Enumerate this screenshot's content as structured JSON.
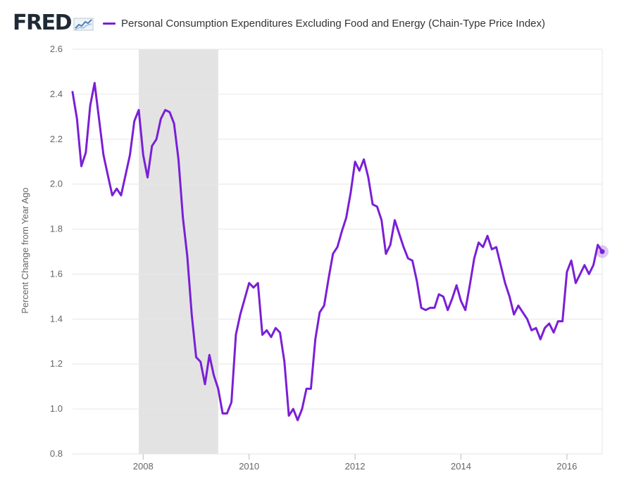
{
  "header": {
    "logo_text": "FRED",
    "legend_label": "Personal Consumption Expenditures Excluding Food and Energy (Chain-Type Price Index)"
  },
  "colors": {
    "series": "#7a1fd6",
    "recession": "#e3e3e3",
    "grid": "#e6e6e6",
    "text": "#666666",
    "logo": "#1f2a36"
  },
  "chart_data": {
    "type": "line",
    "title": "",
    "xlabel": "",
    "ylabel": "Percent Change from Year Ago",
    "ylim": [
      0.8,
      2.6
    ],
    "xlim": [
      "2006-09",
      "2016-08"
    ],
    "y_ticks": [
      "0.8",
      "1.0",
      "1.2",
      "1.4",
      "1.6",
      "1.8",
      "2.0",
      "2.2",
      "2.4",
      "2.6"
    ],
    "x_ticks": [
      "2008",
      "2010",
      "2012",
      "2014",
      "2016"
    ],
    "grid": true,
    "legend_position": "top",
    "recession_shading": [
      {
        "start": "2007-12",
        "end": "2009-06"
      }
    ],
    "series": [
      {
        "name": "Personal Consumption Expenditures Excluding Food and Energy (Chain-Type Price Index)",
        "points": [
          [
            "2006-09",
            2.41
          ],
          [
            "2006-10",
            2.29
          ],
          [
            "2006-11",
            2.08
          ],
          [
            "2006-12",
            2.14
          ],
          [
            "2007-01",
            2.35
          ],
          [
            "2007-02",
            2.45
          ],
          [
            "2007-03",
            2.29
          ],
          [
            "2007-04",
            2.13
          ],
          [
            "2007-05",
            2.04
          ],
          [
            "2007-06",
            1.95
          ],
          [
            "2007-07",
            1.98
          ],
          [
            "2007-08",
            1.95
          ],
          [
            "2007-09",
            2.04
          ],
          [
            "2007-10",
            2.13
          ],
          [
            "2007-11",
            2.28
          ],
          [
            "2007-12",
            2.33
          ],
          [
            "2008-01",
            2.13
          ],
          [
            "2008-02",
            2.03
          ],
          [
            "2008-03",
            2.17
          ],
          [
            "2008-04",
            2.2
          ],
          [
            "2008-05",
            2.29
          ],
          [
            "2008-06",
            2.33
          ],
          [
            "2008-07",
            2.32
          ],
          [
            "2008-08",
            2.27
          ],
          [
            "2008-09",
            2.11
          ],
          [
            "2008-10",
            1.85
          ],
          [
            "2008-11",
            1.68
          ],
          [
            "2008-12",
            1.42
          ],
          [
            "2009-01",
            1.23
          ],
          [
            "2009-02",
            1.21
          ],
          [
            "2009-03",
            1.11
          ],
          [
            "2009-04",
            1.24
          ],
          [
            "2009-05",
            1.15
          ],
          [
            "2009-06",
            1.09
          ],
          [
            "2009-07",
            0.98
          ],
          [
            "2009-08",
            0.98
          ],
          [
            "2009-09",
            1.03
          ],
          [
            "2009-10",
            1.33
          ],
          [
            "2009-11",
            1.42
          ],
          [
            "2009-12",
            1.49
          ],
          [
            "2010-01",
            1.56
          ],
          [
            "2010-02",
            1.54
          ],
          [
            "2010-03",
            1.56
          ],
          [
            "2010-04",
            1.33
          ],
          [
            "2010-05",
            1.35
          ],
          [
            "2010-06",
            1.32
          ],
          [
            "2010-07",
            1.36
          ],
          [
            "2010-08",
            1.34
          ],
          [
            "2010-09",
            1.21
          ],
          [
            "2010-10",
            0.97
          ],
          [
            "2010-11",
            1.0
          ],
          [
            "2010-12",
            0.95
          ],
          [
            "2011-01",
            1.0
          ],
          [
            "2011-02",
            1.09
          ],
          [
            "2011-03",
            1.09
          ],
          [
            "2011-04",
            1.31
          ],
          [
            "2011-05",
            1.43
          ],
          [
            "2011-06",
            1.46
          ],
          [
            "2011-07",
            1.58
          ],
          [
            "2011-08",
            1.69
          ],
          [
            "2011-09",
            1.72
          ],
          [
            "2011-10",
            1.79
          ],
          [
            "2011-11",
            1.85
          ],
          [
            "2011-12",
            1.96
          ],
          [
            "2012-01",
            2.1
          ],
          [
            "2012-02",
            2.06
          ],
          [
            "2012-03",
            2.11
          ],
          [
            "2012-04",
            2.03
          ],
          [
            "2012-05",
            1.91
          ],
          [
            "2012-06",
            1.9
          ],
          [
            "2012-07",
            1.84
          ],
          [
            "2012-08",
            1.69
          ],
          [
            "2012-09",
            1.73
          ],
          [
            "2012-10",
            1.84
          ],
          [
            "2012-11",
            1.78
          ],
          [
            "2012-12",
            1.72
          ],
          [
            "2013-01",
            1.67
          ],
          [
            "2013-02",
            1.66
          ],
          [
            "2013-03",
            1.57
          ],
          [
            "2013-04",
            1.45
          ],
          [
            "2013-05",
            1.44
          ],
          [
            "2013-06",
            1.45
          ],
          [
            "2013-07",
            1.45
          ],
          [
            "2013-08",
            1.51
          ],
          [
            "2013-09",
            1.5
          ],
          [
            "2013-10",
            1.44
          ],
          [
            "2013-11",
            1.49
          ],
          [
            "2013-12",
            1.55
          ],
          [
            "2014-01",
            1.48
          ],
          [
            "2014-02",
            1.44
          ],
          [
            "2014-03",
            1.55
          ],
          [
            "2014-04",
            1.67
          ],
          [
            "2014-05",
            1.74
          ],
          [
            "2014-06",
            1.72
          ],
          [
            "2014-07",
            1.77
          ],
          [
            "2014-08",
            1.71
          ],
          [
            "2014-09",
            1.72
          ],
          [
            "2014-10",
            1.64
          ],
          [
            "2014-11",
            1.56
          ],
          [
            "2014-12",
            1.5
          ],
          [
            "2015-01",
            1.42
          ],
          [
            "2015-02",
            1.46
          ],
          [
            "2015-03",
            1.43
          ],
          [
            "2015-04",
            1.4
          ],
          [
            "2015-05",
            1.35
          ],
          [
            "2015-06",
            1.36
          ],
          [
            "2015-07",
            1.31
          ],
          [
            "2015-08",
            1.36
          ],
          [
            "2015-09",
            1.38
          ],
          [
            "2015-10",
            1.34
          ],
          [
            "2015-11",
            1.39
          ],
          [
            "2015-12",
            1.39
          ],
          [
            "2016-01",
            1.61
          ],
          [
            "2016-02",
            1.66
          ],
          [
            "2016-03",
            1.56
          ],
          [
            "2016-04",
            1.6
          ],
          [
            "2016-05",
            1.64
          ],
          [
            "2016-06",
            1.6
          ],
          [
            "2016-07",
            1.64
          ],
          [
            "2016-08",
            1.73
          ],
          [
            "2016-09",
            1.7
          ]
        ]
      }
    ]
  }
}
